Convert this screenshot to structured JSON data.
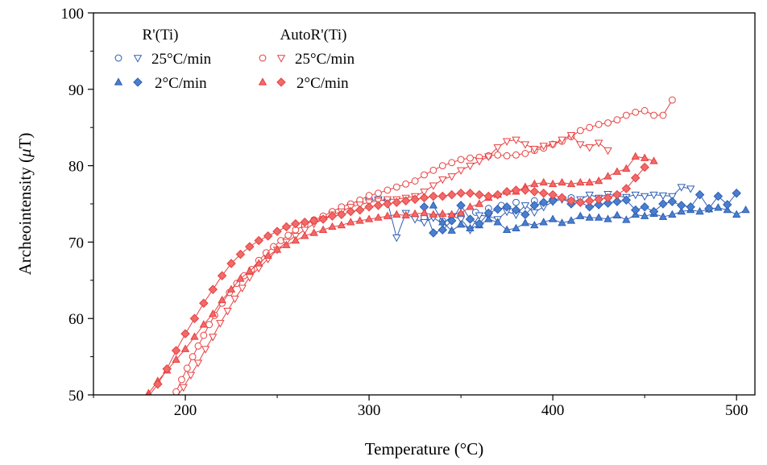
{
  "chart_data": {
    "type": "scatter",
    "xlabel": "Temperature (°C)",
    "ylabel_prefix": "Archeointensity (",
    "ylabel_mu": "μ",
    "ylabel_suffix": "T)",
    "xlim": [
      150,
      510
    ],
    "ylim": [
      50,
      100
    ],
    "x_ticks": [
      200,
      300,
      400,
      500
    ],
    "x_tick_labels": [
      "200",
      "300",
      "400",
      "500"
    ],
    "y_ticks": [
      50,
      60,
      70,
      80,
      90,
      100
    ],
    "y_tick_labels": [
      "50",
      "60",
      "70",
      "80",
      "90",
      "100"
    ],
    "grid": false,
    "legend_position": "top-left",
    "legend": {
      "group_titles": [
        "R'(Ti)",
        "AutoR'(Ti)"
      ],
      "row_labels": [
        "25°C/min",
        "2°C/min"
      ]
    },
    "colors": {
      "blue": "#2f5fb3",
      "blue_fill": "#4a7fcf",
      "red": "#e8403f",
      "red_fill": "#f06a6a"
    },
    "series": [
      {
        "group": "R'(Ti)",
        "rate": "25°C/min",
        "marker": "circle",
        "color": "blue",
        "filled": false,
        "line": false,
        "x": [
          330,
          340,
          350,
          358,
          365,
          372,
          380,
          390,
          400,
          410
        ],
        "y": [
          73.2,
          72.8,
          73.6,
          73.9,
          74.4,
          74.8,
          75.2,
          75.4,
          75.5,
          75.8
        ]
      },
      {
        "group": "R'(Ti)",
        "rate": "25°C/min",
        "marker": "triangle-down",
        "color": "blue",
        "filled": false,
        "line": true,
        "x": [
          300,
          305,
          310,
          315,
          320,
          325,
          330,
          335,
          340,
          345,
          350,
          355,
          360,
          365,
          370,
          375,
          380,
          385,
          390,
          395,
          400,
          405,
          410,
          415,
          420,
          425,
          430,
          435,
          440,
          445,
          450,
          455,
          460,
          465,
          470,
          475
        ],
        "y": [
          75.4,
          75.6,
          75.3,
          70.6,
          73.8,
          73.0,
          72.6,
          73.2,
          72.4,
          73.4,
          73.0,
          71.6,
          73.5,
          73.4,
          73.0,
          74.0,
          73.6,
          74.8,
          73.9,
          74.6,
          75.3,
          75.6,
          75.2,
          75.6,
          76.2,
          75.8,
          76.3,
          76.0,
          75.9,
          76.2,
          76.0,
          76.2,
          76.1,
          76.0,
          77.2,
          77.0
        ]
      },
      {
        "group": "R'(Ti)",
        "rate": "2°C/min",
        "marker": "triangle-up",
        "color": "blue",
        "filled": true,
        "line": true,
        "x": [
          335,
          340,
          345,
          350,
          355,
          360,
          365,
          370,
          375,
          380,
          385,
          390,
          395,
          400,
          405,
          410,
          415,
          420,
          425,
          430,
          435,
          440,
          445,
          450,
          455,
          460,
          465,
          470,
          475,
          480,
          485,
          490,
          495,
          500,
          505
        ],
        "y": [
          74.8,
          72.6,
          71.5,
          72.3,
          71.8,
          72.2,
          73.0,
          72.6,
          71.6,
          71.8,
          72.5,
          72.2,
          72.6,
          73.0,
          72.5,
          72.8,
          73.4,
          73.2,
          73.2,
          73.0,
          73.5,
          72.9,
          73.6,
          73.4,
          73.7,
          73.3,
          73.6,
          74.0,
          74.2,
          74.0,
          74.3,
          74.5,
          74.2,
          73.6,
          74.2
        ]
      },
      {
        "group": "R'(Ti)",
        "rate": "2°C/min",
        "marker": "diamond",
        "color": "blue",
        "filled": true,
        "line": true,
        "x": [
          330,
          335,
          340,
          345,
          350,
          355,
          360,
          365,
          370,
          375,
          380,
          385,
          390,
          395,
          400,
          405,
          410,
          415,
          420,
          425,
          430,
          435,
          440,
          445,
          450,
          455,
          460,
          465,
          470,
          475,
          480,
          485,
          490,
          495,
          500
        ],
        "y": [
          74.6,
          71.2,
          71.6,
          72.8,
          74.8,
          73.0,
          72.4,
          73.8,
          74.3,
          74.6,
          74.2,
          73.6,
          74.8,
          75.2,
          75.4,
          75.8,
          75.0,
          75.2,
          74.6,
          74.9,
          75.1,
          75.3,
          75.5,
          74.2,
          74.6,
          74.0,
          75.0,
          75.3,
          74.8,
          74.6,
          76.2,
          74.4,
          76.0,
          74.9,
          76.4
        ]
      },
      {
        "group": "AutoR'(Ti)",
        "rate": "25°C/min",
        "marker": "circle",
        "color": "red",
        "filled": false,
        "line": true,
        "x": [
          195,
          198,
          201,
          204,
          207,
          210,
          213,
          216,
          220,
          224,
          228,
          232,
          236,
          240,
          244,
          248,
          252,
          256,
          260,
          265,
          270,
          275,
          280,
          285,
          290,
          295,
          300,
          305,
          310,
          315,
          320,
          325,
          330,
          335,
          340,
          345,
          350,
          355,
          360,
          365,
          370,
          375,
          380,
          385,
          390,
          395,
          400,
          405,
          410,
          415,
          420,
          425,
          430,
          435,
          440,
          445,
          450,
          455,
          460,
          465
        ],
        "y": [
          50.4,
          52.0,
          53.5,
          55.0,
          56.4,
          57.8,
          59.2,
          60.4,
          62.0,
          63.4,
          64.6,
          65.6,
          66.4,
          67.6,
          68.6,
          69.4,
          70.2,
          70.9,
          71.6,
          72.2,
          72.9,
          73.4,
          74.0,
          74.6,
          75.0,
          75.5,
          76.1,
          76.4,
          76.8,
          77.2,
          77.6,
          78.0,
          78.8,
          79.4,
          80.0,
          80.4,
          80.8,
          81.0,
          81.1,
          81.3,
          81.4,
          81.3,
          81.4,
          81.6,
          82.0,
          82.3,
          82.8,
          83.2,
          83.8,
          84.6,
          85.0,
          85.4,
          85.6,
          86.0,
          86.6,
          87.0,
          87.2,
          86.6,
          86.6,
          88.6
        ]
      },
      {
        "group": "AutoR'(Ti)",
        "rate": "25°C/min",
        "marker": "triangle-down",
        "color": "red",
        "filled": false,
        "line": true,
        "x": [
          195,
          199,
          203,
          207,
          211,
          215,
          219,
          223,
          227,
          231,
          235,
          240,
          245,
          250,
          255,
          260,
          265,
          270,
          275,
          280,
          285,
          290,
          295,
          300,
          305,
          310,
          315,
          320,
          325,
          330,
          335,
          340,
          345,
          350,
          355,
          360,
          365,
          370,
          375,
          380,
          385,
          390,
          395,
          400,
          405,
          410,
          415,
          420,
          425,
          430
        ],
        "y": [
          49.6,
          51.0,
          52.6,
          54.2,
          56.0,
          57.6,
          59.4,
          61.0,
          62.6,
          64.0,
          65.4,
          66.6,
          67.8,
          69.0,
          70.0,
          70.8,
          71.6,
          72.4,
          73.0,
          73.6,
          74.0,
          74.6,
          74.9,
          75.2,
          75.4,
          75.6,
          75.6,
          75.8,
          76.0,
          76.6,
          77.4,
          78.2,
          78.6,
          79.4,
          80.0,
          80.6,
          81.2,
          82.4,
          83.2,
          83.4,
          82.8,
          82.2,
          82.6,
          82.8,
          83.4,
          84.0,
          82.8,
          82.4,
          83.0,
          82.0
        ]
      },
      {
        "group": "AutoR'(Ti)",
        "rate": "2°C/min",
        "marker": "triangle-up",
        "color": "red",
        "filled": true,
        "line": true,
        "x": [
          180,
          185,
          190,
          195,
          200,
          205,
          210,
          215,
          220,
          225,
          230,
          235,
          240,
          245,
          250,
          255,
          260,
          265,
          270,
          275,
          280,
          285,
          290,
          295,
          300,
          305,
          310,
          315,
          320,
          325,
          330,
          335,
          340,
          345,
          350,
          355,
          360,
          365,
          370,
          375,
          380,
          385,
          390,
          395,
          400,
          405,
          410,
          415,
          420,
          425,
          430,
          435,
          440,
          445,
          450,
          455
        ],
        "y": [
          50.2,
          51.8,
          53.2,
          54.6,
          56.0,
          57.6,
          59.2,
          60.6,
          62.4,
          63.8,
          65.2,
          66.2,
          67.2,
          68.2,
          69.0,
          69.6,
          70.2,
          70.8,
          71.2,
          71.6,
          72.0,
          72.2,
          72.6,
          72.8,
          73.0,
          73.2,
          73.4,
          73.6,
          73.5,
          73.7,
          73.8,
          73.6,
          73.7,
          73.6,
          73.8,
          74.6,
          75.0,
          75.8,
          76.2,
          76.6,
          76.6,
          77.2,
          77.6,
          77.8,
          77.6,
          77.8,
          77.6,
          77.8,
          77.8,
          78.0,
          78.6,
          79.2,
          79.6,
          81.2,
          81.0,
          80.6
        ]
      },
      {
        "group": "AutoR'(Ti)",
        "rate": "2°C/min",
        "marker": "diamond",
        "color": "red",
        "filled": true,
        "line": true,
        "x": [
          180,
          185,
          190,
          195,
          200,
          205,
          210,
          215,
          220,
          225,
          230,
          235,
          240,
          245,
          250,
          255,
          260,
          265,
          270,
          275,
          280,
          285,
          290,
          295,
          300,
          305,
          310,
          315,
          320,
          325,
          330,
          335,
          340,
          345,
          350,
          355,
          360,
          365,
          370,
          375,
          380,
          385,
          390,
          395,
          400,
          405,
          410,
          415,
          420,
          425,
          430,
          435,
          440,
          445,
          450
        ],
        "y": [
          49.8,
          51.4,
          53.4,
          55.8,
          58.0,
          60.0,
          62.0,
          63.8,
          65.6,
          67.2,
          68.4,
          69.4,
          70.2,
          70.8,
          71.4,
          72.0,
          72.4,
          72.6,
          72.8,
          73.0,
          73.4,
          73.6,
          74.0,
          74.2,
          74.6,
          74.8,
          75.0,
          75.2,
          75.4,
          75.6,
          75.8,
          76.0,
          76.0,
          76.2,
          76.4,
          76.4,
          76.2,
          76.0,
          76.2,
          76.6,
          76.8,
          76.8,
          76.6,
          76.4,
          76.2,
          75.8,
          75.4,
          75.2,
          75.4,
          75.6,
          75.8,
          76.2,
          77.0,
          78.4,
          79.8
        ]
      }
    ]
  }
}
